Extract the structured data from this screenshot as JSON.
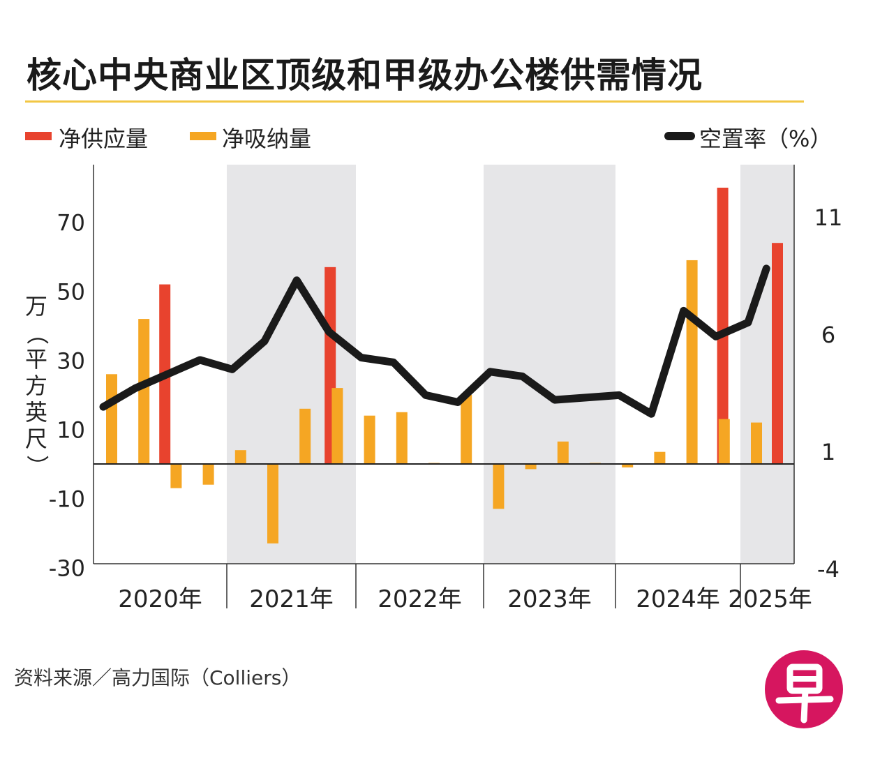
{
  "chart_data": {
    "type": "bar+line",
    "title": "核心中央商业区顶级和甲级办公楼供需情况",
    "legend": {
      "supply": "净供应量",
      "absorption": "净吸纳量",
      "vacancy": "空置率（%）"
    },
    "colors": {
      "supply": "#e8432e",
      "absorption": "#f5a623",
      "vacancy": "#1a1a1a",
      "shade": "#e6e6e8",
      "rule": "#f2c744"
    },
    "ylabel": "万（平方英尺）",
    "y_left": {
      "min": -30,
      "max": 80,
      "ticks": [
        -30,
        -10,
        10,
        30,
        50,
        70
      ]
    },
    "y_right": {
      "min": -4,
      "max": 13,
      "ticks": [
        -4,
        1,
        6,
        11
      ]
    },
    "years": [
      "2020年",
      "2021年",
      "2022年",
      "2023年",
      "2024年",
      "2025年"
    ],
    "year_quarters": [
      4,
      4,
      4,
      4,
      4,
      2
    ],
    "quarters": [
      "2020Q1",
      "2020Q2",
      "2020Q3",
      "2020Q4",
      "2021Q1",
      "2021Q2",
      "2021Q3",
      "2021Q4",
      "2022Q1",
      "2022Q2",
      "2022Q3",
      "2022Q4",
      "2023Q1",
      "2023Q2",
      "2023Q3",
      "2023Q4",
      "2024Q1",
      "2024Q2",
      "2024Q3",
      "2024Q4",
      "2025Q1",
      "2025Q2"
    ],
    "series": [
      {
        "name": "净供应量",
        "values": [
          0,
          52,
          0,
          0,
          0,
          0,
          57,
          0,
          0,
          0,
          0,
          0,
          0,
          0,
          0,
          0,
          0,
          0,
          80,
          0,
          64,
          0
        ]
      },
      {
        "name": "净吸纳量",
        "values": [
          26,
          42,
          -7,
          -6,
          4,
          -23,
          16,
          22,
          14,
          15,
          0.3,
          20,
          -13,
          -1.5,
          6.5,
          0.3,
          -1,
          3.5,
          59,
          13,
          12,
          0
        ]
      },
      {
        "name": "空置率（%）",
        "values": [
          2.9,
          3.7,
          4.3,
          4.9,
          4.5,
          5.7,
          8.3,
          6.1,
          5.0,
          4.8,
          3.4,
          3.1,
          4.4,
          4.2,
          3.2,
          3.3,
          3.4,
          2.6,
          7.0,
          5.9,
          6.5,
          8.8
        ]
      }
    ],
    "source": "资料来源／高力国际（Colliers）"
  }
}
